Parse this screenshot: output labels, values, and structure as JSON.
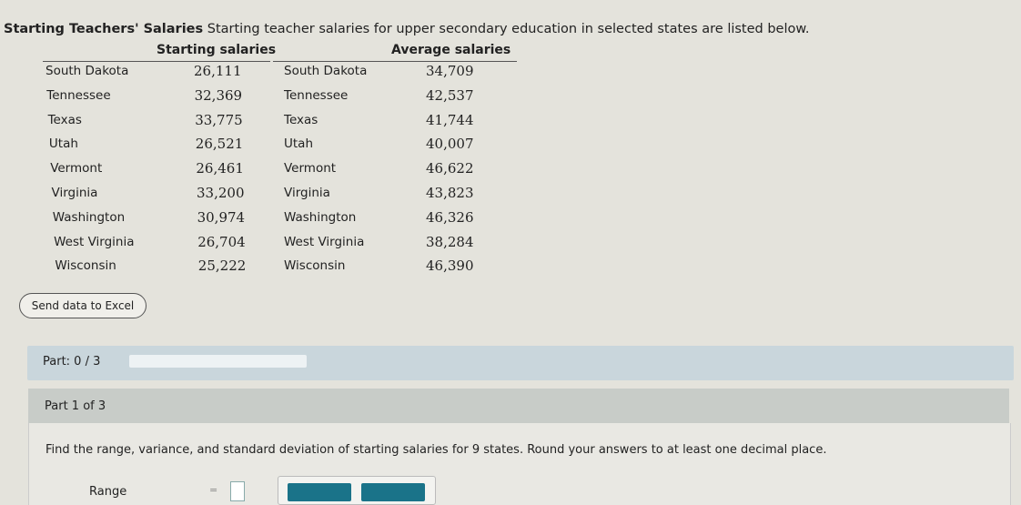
{
  "title": {
    "bold": "Starting Teachers' Salaries",
    "text": "Starting teacher salaries for upper secondary education in selected states are listed below."
  },
  "table": {
    "headers": {
      "starting": "Starting salaries",
      "average": "Average salaries"
    },
    "starting": [
      [
        "South Dakota",
        "26,111"
      ],
      [
        "Tennessee",
        "32,369"
      ],
      [
        "Texas",
        "33,775"
      ],
      [
        "Utah",
        "26,521"
      ],
      [
        "Vermont",
        "26,461"
      ],
      [
        "Virginia",
        "33,200"
      ],
      [
        "Washington",
        "30,974"
      ],
      [
        "West Virginia",
        "26,704"
      ],
      [
        "Wisconsin",
        "25,222"
      ]
    ],
    "average": [
      [
        "South Dakota",
        "34,709"
      ],
      [
        "Tennessee",
        "42,537"
      ],
      [
        "Texas",
        "41,744"
      ],
      [
        "Utah",
        "40,007"
      ],
      [
        "Vermont",
        "46,622"
      ],
      [
        "Virginia",
        "43,823"
      ],
      [
        "Washington",
        "46,326"
      ],
      [
        "West Virginia",
        "38,284"
      ],
      [
        "Wisconsin",
        "46,390"
      ]
    ]
  },
  "excel_button": "Send data to Excel",
  "part": {
    "label": "Part: 0 / 3",
    "progress": 0
  },
  "part1": {
    "label": "Part 1 of 3",
    "question": "Find the range, variance, and standard deviation of starting salaries for 9 states. Round your answers to at least one decimal place.",
    "range_label": "Range",
    "equals": "="
  },
  "colors": {
    "accent": "#1a7389"
  }
}
